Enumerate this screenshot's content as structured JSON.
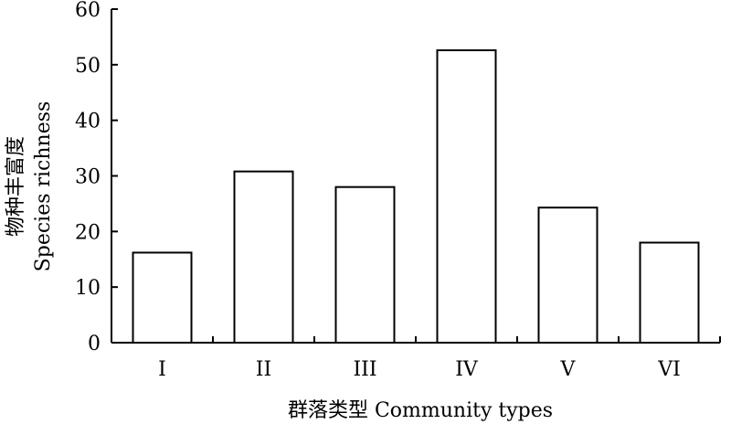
{
  "chart_data": {
    "type": "bar",
    "categories": [
      "I",
      "II",
      "III",
      "IV",
      "V",
      "VI"
    ],
    "values": [
      16.2,
      30.8,
      28.0,
      52.6,
      24.3,
      18.0
    ],
    "title": "",
    "xlabel": "群落类型 Community types",
    "ylabel_cn": "物种丰富度",
    "ylabel_en": "Species richness",
    "ylim": [
      0,
      60
    ],
    "yticks": [
      0,
      10,
      20,
      30,
      40,
      50,
      60
    ],
    "grid": false,
    "legend": "none",
    "bar_fill": "#ffffff",
    "bar_stroke": "#000000"
  }
}
